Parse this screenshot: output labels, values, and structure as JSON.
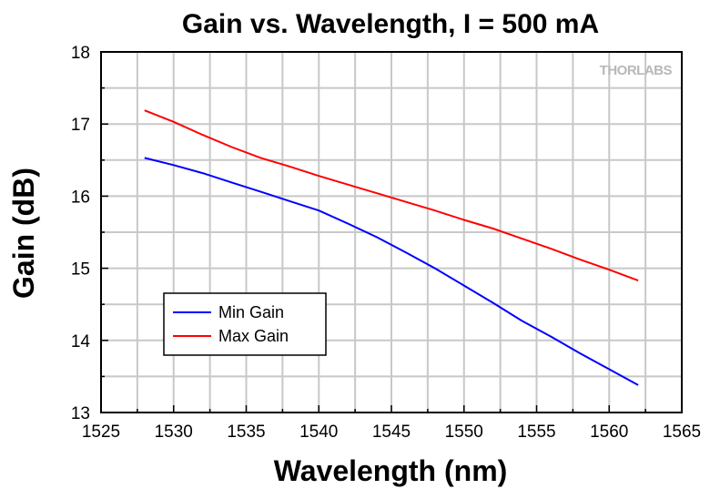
{
  "chart_data": {
    "type": "line",
    "title": "Gain vs. Wavelength, I = 500 mA",
    "xlabel": "Wavelength (nm)",
    "ylabel": "Gain (dB)",
    "xlim": [
      1525,
      1565
    ],
    "ylim": [
      13,
      18
    ],
    "x_ticks": [
      1525,
      1530,
      1535,
      1540,
      1545,
      1550,
      1555,
      1560,
      1565
    ],
    "y_ticks": [
      13,
      14,
      15,
      16,
      17,
      18
    ],
    "grid": true,
    "legend_position": "lower-left",
    "watermark": "THORLABS",
    "series": [
      {
        "name": "Min Gain",
        "color": "#0000ff",
        "x": [
          1528,
          1530,
          1532,
          1534,
          1536,
          1538,
          1540,
          1542,
          1544,
          1546,
          1548,
          1550,
          1552,
          1554,
          1556,
          1558,
          1560,
          1562
        ],
        "y": [
          16.53,
          16.43,
          16.32,
          16.19,
          16.06,
          15.93,
          15.8,
          15.62,
          15.43,
          15.22,
          15.0,
          14.76,
          14.52,
          14.27,
          14.05,
          13.82,
          13.6,
          13.38
        ]
      },
      {
        "name": "Max Gain",
        "color": "#ff0000",
        "x": [
          1528,
          1530,
          1532,
          1534,
          1536,
          1538,
          1540,
          1542,
          1544,
          1546,
          1548,
          1550,
          1552,
          1554,
          1556,
          1558,
          1560,
          1562
        ],
        "y": [
          17.19,
          17.03,
          16.85,
          16.68,
          16.53,
          16.41,
          16.28,
          16.16,
          16.04,
          15.92,
          15.8,
          15.67,
          15.55,
          15.41,
          15.27,
          15.12,
          14.98,
          14.83
        ]
      }
    ]
  }
}
